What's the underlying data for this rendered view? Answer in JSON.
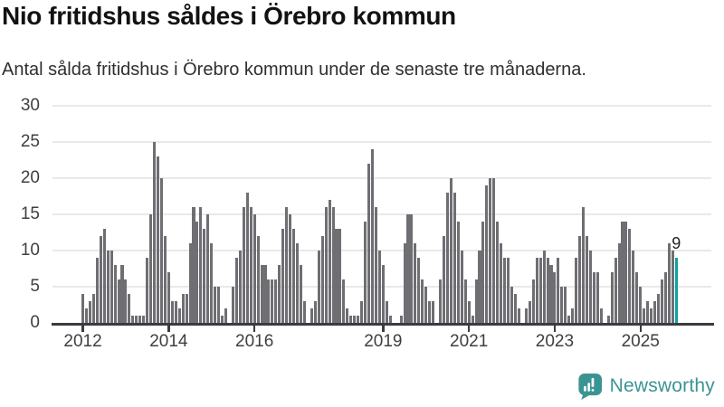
{
  "header": {
    "title": "Nio fritidshus såldes i Örebro kommun",
    "subtitle": "Antal sålda fritidshus i Örebro kommun under de senaste tre månaderna."
  },
  "chart_data": {
    "type": "bar",
    "title": "Nio fritidshus såldes i Örebro kommun",
    "subtitle": "Antal sålda fritidshus i Örebro kommun under de senaste tre månaderna.",
    "xlabel": "",
    "ylabel": "",
    "ylim": [
      0,
      30
    ],
    "grid": true,
    "legend": false,
    "y_ticks": [
      0,
      5,
      10,
      15,
      20,
      25,
      30
    ],
    "x_ticks": [
      {
        "label": "2012",
        "index": 0
      },
      {
        "label": "2014",
        "index": 24
      },
      {
        "label": "2016",
        "index": 48
      },
      {
        "label": "2019",
        "index": 84
      },
      {
        "label": "2021",
        "index": 108
      },
      {
        "label": "2023",
        "index": 132
      },
      {
        "label": "2025",
        "index": 156
      }
    ],
    "values": [
      4,
      2,
      3,
      4,
      9,
      12,
      13,
      10,
      10,
      8,
      6,
      8,
      6,
      4,
      1,
      1,
      1,
      1,
      9,
      15,
      25,
      23,
      20,
      12,
      7,
      3,
      3,
      2,
      4,
      4,
      11,
      16,
      14,
      16,
      13,
      15,
      11,
      5,
      5,
      1,
      2,
      0,
      5,
      9,
      10,
      16,
      18,
      16,
      15,
      12,
      8,
      8,
      6,
      6,
      6,
      8,
      13,
      16,
      15,
      13,
      11,
      8,
      3,
      0,
      2,
      3,
      10,
      12,
      16,
      17,
      16,
      13,
      13,
      6,
      2,
      1,
      1,
      1,
      3,
      14,
      22,
      24,
      16,
      10,
      8,
      3,
      1,
      0,
      0,
      1,
      11,
      15,
      15,
      11,
      9,
      6,
      5,
      3,
      3,
      0,
      6,
      12,
      18,
      20,
      18,
      14,
      10,
      6,
      3,
      1,
      6,
      10,
      14,
      19,
      20,
      20,
      14,
      11,
      9,
      9,
      5,
      4,
      2,
      0,
      2,
      3,
      6,
      9,
      9,
      10,
      9,
      8,
      7,
      9,
      5,
      5,
      1,
      2,
      9,
      12,
      16,
      12,
      10,
      7,
      7,
      2,
      0,
      1,
      7,
      9,
      11,
      14,
      14,
      13,
      10,
      7,
      5,
      2,
      3,
      2,
      3,
      4,
      6,
      7,
      11,
      10,
      9
    ],
    "bar_color": "#6e6e73",
    "highlight": {
      "index": 166,
      "value": 9,
      "label": "9",
      "color": "#0ba3a1"
    }
  },
  "branding": {
    "logo_text": "Newsworthy",
    "logo_icon": "newsworthy-speech-bubble-bar-chart-icon",
    "logo_color": "#3a9493"
  },
  "colors": {
    "background": "#ffffff",
    "bar_gray": "#6e6e73",
    "accent_teal": "#0ba3a1",
    "axis_dark": "#3b3b41",
    "gridline": "#e9e9e9",
    "text_dark": "#121212",
    "text_gray": "#3f3f3f"
  }
}
